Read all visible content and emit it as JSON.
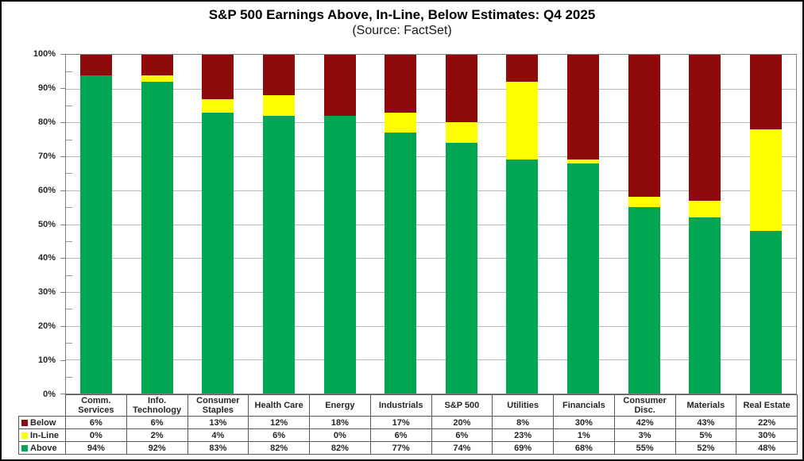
{
  "title": "S&P 500 Earnings Above, In-Line, Below Estimates: Q4 2025",
  "subtitle": "(Source: FactSet)",
  "colors": {
    "below": "#8f0a0a",
    "in_line": "#ffff00",
    "above": "#00a651",
    "gridline": "#b9b9b9",
    "axis_border": "#7f7f7f",
    "table_border": "#595959",
    "text": "#262626"
  },
  "y_axis": {
    "tick_labels": [
      "100%",
      "90%",
      "80%",
      "70%",
      "60%",
      "50%",
      "40%",
      "30%",
      "20%",
      "10%",
      "0%"
    ],
    "major_step": 10,
    "minor_step": 5
  },
  "chart_data": {
    "type": "bar",
    "stacked": true,
    "title": "S&P 500 Earnings Above, In-Line, Below Estimates: Q4 2025",
    "subtitle": "(Source: FactSet)",
    "categories": [
      "Comm. Services",
      "Info. Technology",
      "Consumer Staples",
      "Health Care",
      "Energy",
      "Industrials",
      "S&P 500",
      "Utilities",
      "Financials",
      "Consumer Disc.",
      "Materials",
      "Real Estate"
    ],
    "series": [
      {
        "name": "Below",
        "color": "#8f0a0a",
        "values": [
          6,
          6,
          13,
          12,
          18,
          17,
          20,
          8,
          30,
          42,
          43,
          22
        ]
      },
      {
        "name": "In-Line",
        "color": "#ffff00",
        "values": [
          0,
          2,
          4,
          6,
          0,
          6,
          6,
          23,
          1,
          3,
          5,
          30
        ]
      },
      {
        "name": "Above",
        "color": "#00a651",
        "values": [
          94,
          92,
          83,
          82,
          82,
          77,
          74,
          69,
          68,
          55,
          52,
          48
        ]
      }
    ],
    "ylim": [
      0,
      100
    ],
    "grid": true,
    "legend_position": "data-table-left",
    "value_suffix": "%"
  }
}
